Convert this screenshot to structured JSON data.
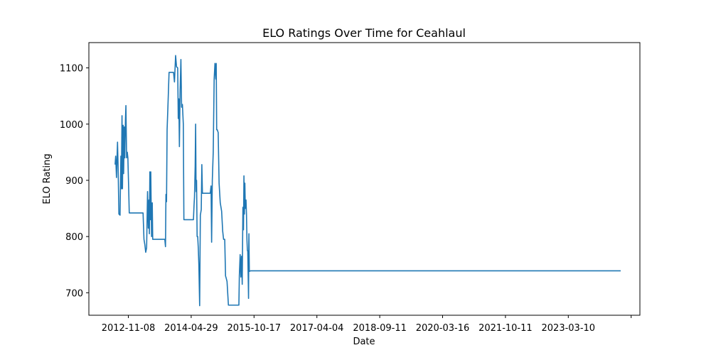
{
  "chart_data": {
    "type": "line",
    "title": "ELO Ratings Over Time for Ceahlaul",
    "xlabel": "Date",
    "ylabel": "ELO Rating",
    "x_tick_labels": [
      "2012-11-08",
      "2014-04-29",
      "2015-10-17",
      "2017-04-04",
      "2018-09-11",
      "2020-03-16",
      "2021-10-11",
      "2023-03-10"
    ],
    "y_ticks": [
      700,
      800,
      900,
      1000,
      1100
    ],
    "xlim": [
      "2011-12-05",
      "2025-01-15"
    ],
    "ylim": [
      660,
      1145
    ],
    "grid": false,
    "legend": "none",
    "series": [
      {
        "color": "#1f77b4",
        "points": [
          [
            "2012-07-20",
            928
          ],
          [
            "2012-07-25",
            943
          ],
          [
            "2012-08-01",
            905
          ],
          [
            "2012-08-05",
            935
          ],
          [
            "2012-08-10",
            968
          ],
          [
            "2012-08-15",
            925
          ],
          [
            "2012-08-22",
            840
          ],
          [
            "2012-09-01",
            838
          ],
          [
            "2012-09-08",
            943
          ],
          [
            "2012-09-12",
            885
          ],
          [
            "2012-09-18",
            1015
          ],
          [
            "2012-09-22",
            885
          ],
          [
            "2012-09-28",
            998
          ],
          [
            "2012-10-02",
            912
          ],
          [
            "2012-10-08",
            995
          ],
          [
            "2012-10-12",
            940
          ],
          [
            "2012-10-18",
            1008
          ],
          [
            "2012-10-22",
            1033
          ],
          [
            "2012-10-28",
            940
          ],
          [
            "2012-11-03",
            950
          ],
          [
            "2012-11-08",
            940
          ],
          [
            "2012-11-15",
            886
          ],
          [
            "2012-11-20",
            842
          ],
          [
            "2013-01-10",
            842
          ],
          [
            "2013-03-20",
            842
          ],
          [
            "2013-03-28",
            795
          ],
          [
            "2013-04-05",
            785
          ],
          [
            "2013-04-12",
            772
          ],
          [
            "2013-04-20",
            780
          ],
          [
            "2013-04-28",
            880
          ],
          [
            "2013-05-05",
            815
          ],
          [
            "2013-05-10",
            865
          ],
          [
            "2013-05-14",
            805
          ],
          [
            "2013-05-18",
            915
          ],
          [
            "2013-05-22",
            830
          ],
          [
            "2013-05-26",
            915
          ],
          [
            "2013-06-02",
            800
          ],
          [
            "2013-06-08",
            860
          ],
          [
            "2013-06-12",
            795
          ],
          [
            "2013-08-01",
            795
          ],
          [
            "2013-09-25",
            795
          ],
          [
            "2013-10-01",
            782
          ],
          [
            "2013-10-05",
            875
          ],
          [
            "2013-10-10",
            862
          ],
          [
            "2013-10-15",
            990
          ],
          [
            "2013-10-22",
            1030
          ],
          [
            "2013-11-01",
            1092
          ],
          [
            "2013-12-10",
            1092
          ],
          [
            "2013-12-18",
            1075
          ],
          [
            "2013-12-28",
            1122
          ],
          [
            "2014-01-05",
            1102
          ],
          [
            "2014-01-15",
            1100
          ],
          [
            "2014-01-20",
            1010
          ],
          [
            "2014-01-25",
            1045
          ],
          [
            "2014-01-30",
            960
          ],
          [
            "2014-02-05",
            1060
          ],
          [
            "2014-02-12",
            1115
          ],
          [
            "2014-02-18",
            1030
          ],
          [
            "2014-02-25",
            1035
          ],
          [
            "2014-03-05",
            1000
          ],
          [
            "2014-03-10",
            830
          ],
          [
            "2014-04-01",
            830
          ],
          [
            "2014-05-20",
            830
          ],
          [
            "2014-06-01",
            830
          ],
          [
            "2014-06-06",
            855
          ],
          [
            "2014-06-10",
            870
          ],
          [
            "2014-06-16",
            925
          ],
          [
            "2014-06-20",
            1000
          ],
          [
            "2014-06-24",
            880
          ],
          [
            "2014-06-28",
            900
          ],
          [
            "2014-07-03",
            800
          ],
          [
            "2014-07-08",
            800
          ],
          [
            "2014-07-13",
            780
          ],
          [
            "2014-07-18",
            750
          ],
          [
            "2014-07-25",
            677
          ],
          [
            "2014-07-31",
            838
          ],
          [
            "2014-08-08",
            848
          ],
          [
            "2014-08-13",
            928
          ],
          [
            "2014-08-18",
            877
          ],
          [
            "2014-10-15",
            877
          ],
          [
            "2014-10-25",
            877
          ],
          [
            "2014-11-01",
            890
          ],
          [
            "2014-11-06",
            790
          ],
          [
            "2014-11-12",
            900
          ],
          [
            "2014-11-20",
            950
          ],
          [
            "2014-11-28",
            1080
          ],
          [
            "2014-12-05",
            1108
          ],
          [
            "2014-12-12",
            1080
          ],
          [
            "2014-12-16",
            1108
          ],
          [
            "2014-12-20",
            990
          ],
          [
            "2014-12-25",
            990
          ],
          [
            "2015-01-02",
            985
          ],
          [
            "2015-01-10",
            895
          ],
          [
            "2015-01-20",
            860
          ],
          [
            "2015-02-01",
            845
          ],
          [
            "2015-02-10",
            810
          ],
          [
            "2015-02-18",
            795
          ],
          [
            "2015-02-28",
            795
          ],
          [
            "2015-03-07",
            730
          ],
          [
            "2015-03-14",
            725
          ],
          [
            "2015-03-20",
            720
          ],
          [
            "2015-04-01",
            678
          ],
          [
            "2015-05-15",
            678
          ],
          [
            "2015-07-01",
            678
          ],
          [
            "2015-07-05",
            730
          ],
          [
            "2015-07-12",
            768
          ],
          [
            "2015-07-18",
            728
          ],
          [
            "2015-07-24",
            765
          ],
          [
            "2015-07-30",
            715
          ],
          [
            "2015-08-05",
            852
          ],
          [
            "2015-08-10",
            812
          ],
          [
            "2015-08-14",
            908
          ],
          [
            "2015-08-18",
            840
          ],
          [
            "2015-08-22",
            895
          ],
          [
            "2015-08-26",
            850
          ],
          [
            "2015-09-01",
            865
          ],
          [
            "2015-09-05",
            840
          ],
          [
            "2015-09-09",
            795
          ],
          [
            "2015-09-13",
            775
          ],
          [
            "2015-09-16",
            775
          ],
          [
            "2015-09-19",
            740
          ],
          [
            "2015-09-23",
            690
          ],
          [
            "2015-09-26",
            805
          ],
          [
            "2015-09-30",
            738
          ],
          [
            "2015-10-10",
            739
          ],
          [
            "2024-08-01",
            739
          ]
        ]
      }
    ]
  }
}
